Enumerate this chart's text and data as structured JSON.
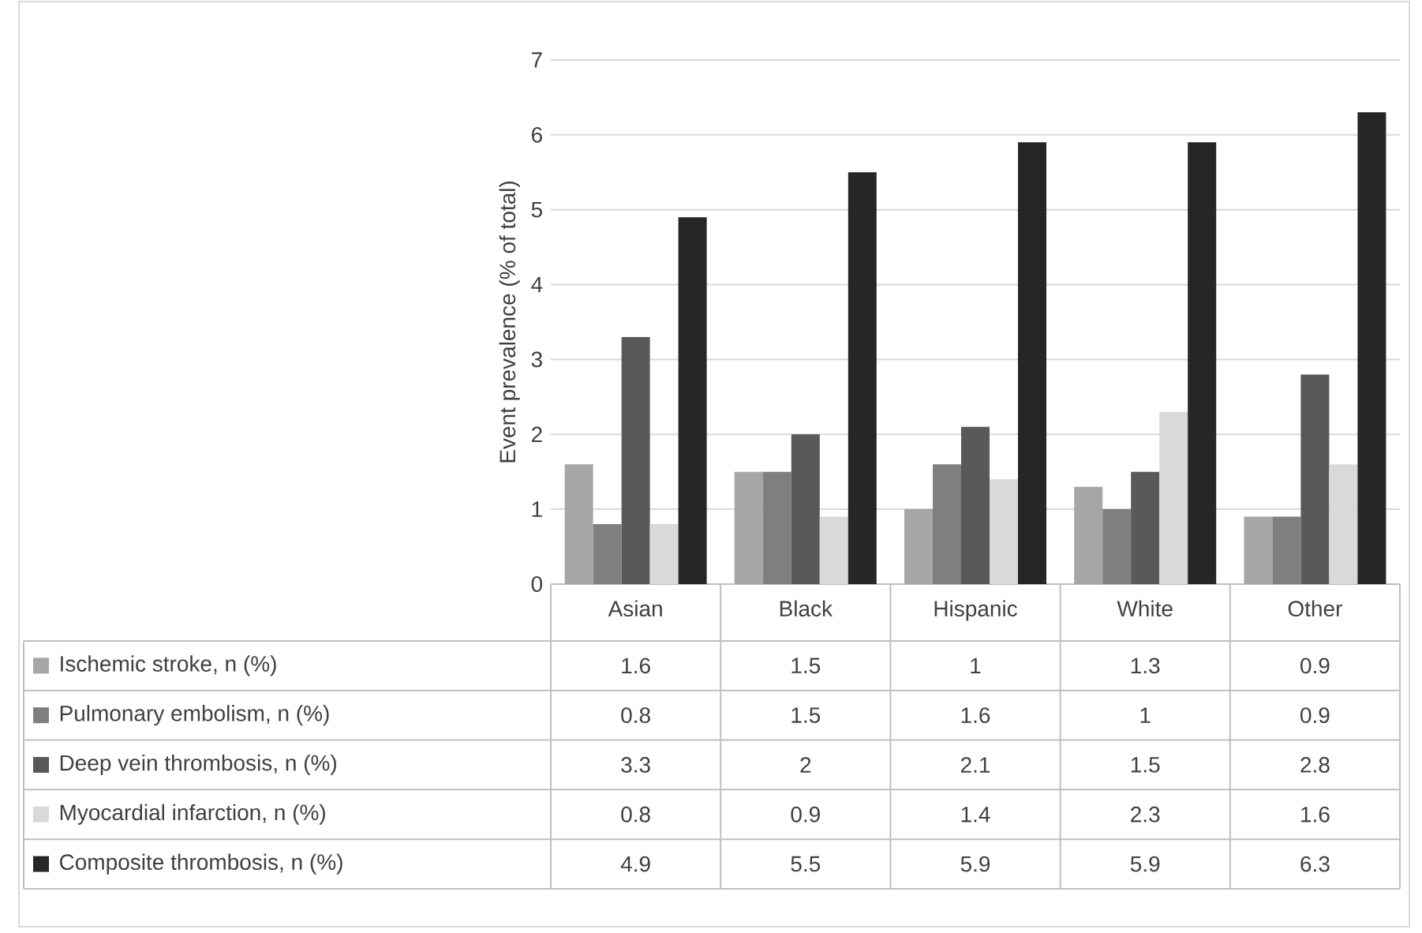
{
  "chart_data": {
    "type": "bar",
    "ylabel": "Event prevalence (% of total)",
    "categories": [
      "Asian",
      "Black",
      "Hispanic",
      "White",
      "Other"
    ],
    "series": [
      {
        "name": "Ischemic stroke, n (%)",
        "color": "#a6a6a6",
        "values": [
          1.6,
          1.5,
          1,
          1.3,
          0.9
        ]
      },
      {
        "name": "Pulmonary embolism, n (%)",
        "color": "#7f7f7f",
        "values": [
          0.8,
          1.5,
          1.6,
          1,
          0.9
        ]
      },
      {
        "name": "Deep vein thrombosis, n (%)",
        "color": "#595959",
        "values": [
          3.3,
          2,
          2.1,
          1.5,
          2.8
        ]
      },
      {
        "name": "Myocardial infarction, n (%)",
        "color": "#d9d9d9",
        "values": [
          0.8,
          0.9,
          1.4,
          2.3,
          1.6
        ]
      },
      {
        "name": "Composite thrombosis, n (%)",
        "color": "#262626",
        "values": [
          4.9,
          5.5,
          5.9,
          5.9,
          6.3
        ]
      }
    ],
    "ylim": [
      0,
      7
    ],
    "yticks": [
      0,
      1,
      2,
      3,
      4,
      5,
      6,
      7
    ],
    "grid": "y",
    "legend": "bottom left",
    "data_labels": true
  }
}
